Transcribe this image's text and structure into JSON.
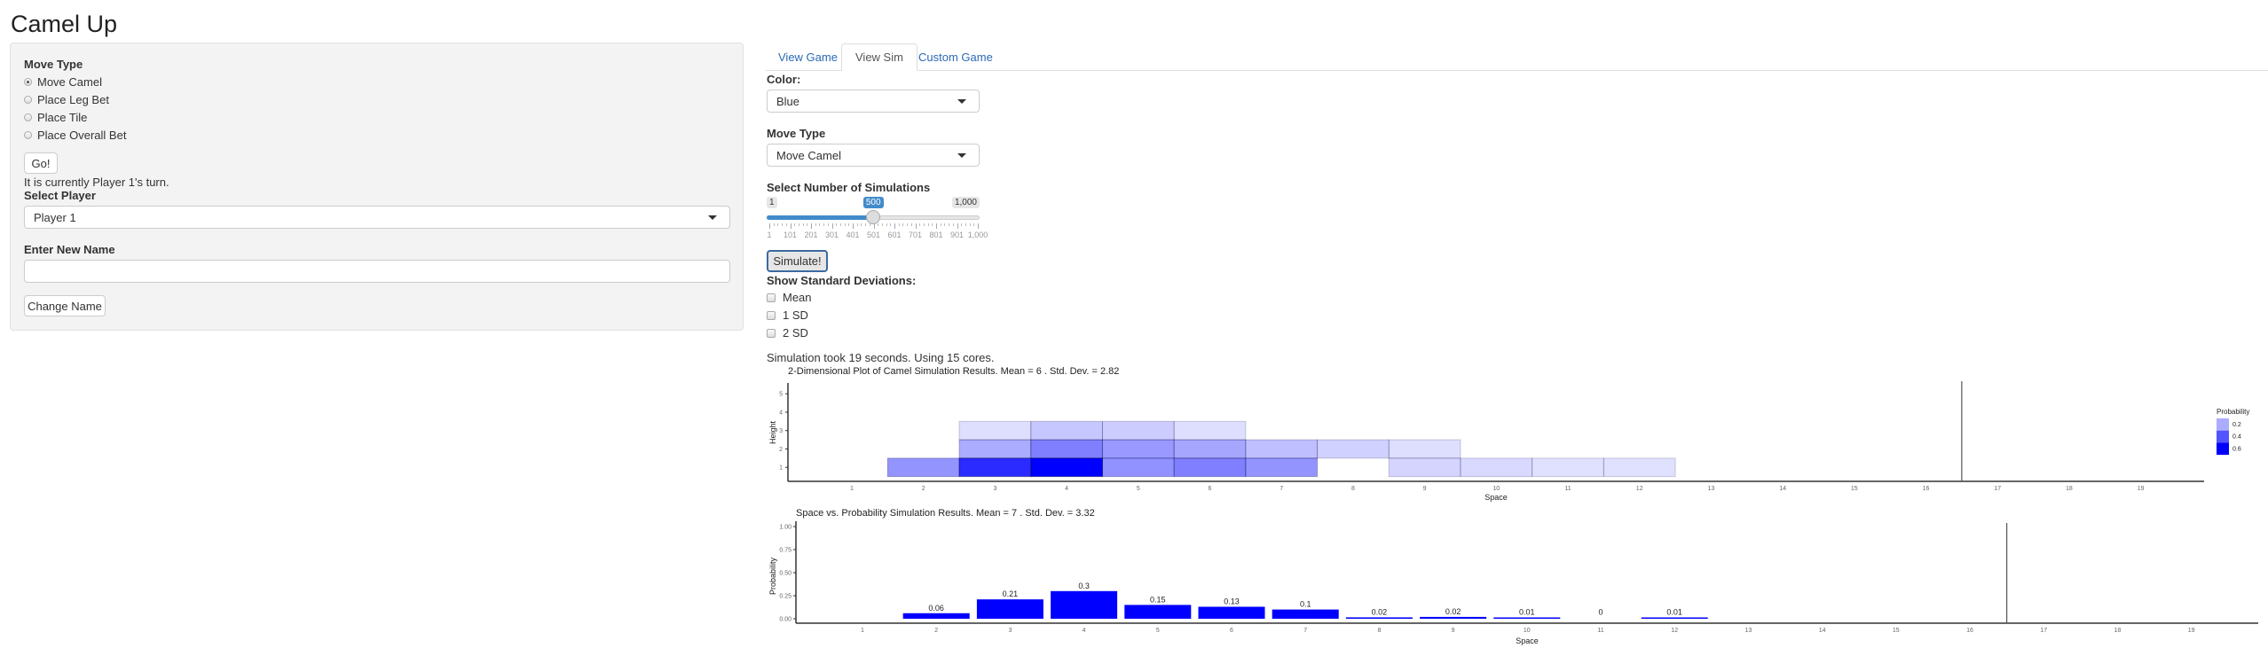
{
  "app": {
    "title": "Camel Up"
  },
  "sidebar": {
    "move_type_label": "Move Type",
    "radios": [
      {
        "label": "Move Camel",
        "checked": true
      },
      {
        "label": "Place Leg Bet",
        "checked": false
      },
      {
        "label": "Place Tile",
        "checked": false
      },
      {
        "label": "Place Overall Bet",
        "checked": false
      }
    ],
    "go_label": "Go!",
    "turn_text": "It is currently Player 1's turn.",
    "select_player_label": "Select Player",
    "select_player_value": "Player 1",
    "new_name_label": "Enter New Name",
    "new_name_value": "",
    "change_name_label": "Change Name"
  },
  "tabs": [
    {
      "label": "View Game",
      "active": false
    },
    {
      "label": "View Sim",
      "active": true
    },
    {
      "label": "Custom Game",
      "active": false
    }
  ],
  "sim": {
    "color_label": "Color:",
    "color_value": "Blue",
    "move_type_label": "Move Type",
    "move_type_value": "Move Camel",
    "slider_label": "Select Number of Simulations",
    "slider": {
      "min": 1,
      "max": 1000,
      "value": 500,
      "min_label": "1",
      "max_label": "1,000",
      "value_label": "500",
      "tick_labels": [
        "1",
        "101",
        "201",
        "301",
        "401",
        "501",
        "601",
        "701",
        "801",
        "901",
        "1,000"
      ]
    },
    "simulate_label": "Simulate!",
    "sd_label": "Show Standard Deviations:",
    "checkboxes": [
      {
        "label": "Mean",
        "checked": false
      },
      {
        "label": "1 SD",
        "checked": false
      },
      {
        "label": "2 SD",
        "checked": false
      }
    ],
    "status": "Simulation took 19 seconds. Using 15 cores."
  },
  "colors": {
    "accent": "#337ab7",
    "bar": "#0000ff"
  },
  "chart_data": [
    {
      "type": "heatmap",
      "title": "2-Dimensional Plot of Camel Simulation Results. Mean =  6 .  Std. Dev. =  2.82",
      "xlabel": "Space",
      "ylabel": "Height",
      "x_ticks": [
        "1",
        "2",
        "3",
        "4",
        "5",
        "6",
        "7",
        "8",
        "9",
        "10",
        "11",
        "12",
        "13",
        "14",
        "15",
        "16",
        "17",
        "18",
        "19"
      ],
      "y_ticks": [
        "1",
        "2",
        "3",
        "4",
        "5"
      ],
      "xlim": [
        0.1,
        19.9
      ],
      "ylim": [
        0.25,
        5.7
      ],
      "vline": 16.5,
      "legend": {
        "title": "Probability",
        "labels": [
          "0.2",
          "0.4",
          "0.6"
        ],
        "position": "right"
      },
      "cells": [
        {
          "x": 2,
          "y": 1,
          "p": 0.25
        },
        {
          "x": 3,
          "y": 1,
          "p": 0.5
        },
        {
          "x": 4,
          "y": 1,
          "p": 0.6
        },
        {
          "x": 5,
          "y": 1,
          "p": 0.26
        },
        {
          "x": 6,
          "y": 1,
          "p": 0.3
        },
        {
          "x": 7,
          "y": 1,
          "p": 0.25
        },
        {
          "x": 9,
          "y": 1,
          "p": 0.1
        },
        {
          "x": 10,
          "y": 1,
          "p": 0.09
        },
        {
          "x": 11,
          "y": 1,
          "p": 0.07
        },
        {
          "x": 12,
          "y": 1,
          "p": 0.07
        },
        {
          "x": 3,
          "y": 2,
          "p": 0.2
        },
        {
          "x": 4,
          "y": 2,
          "p": 0.3
        },
        {
          "x": 5,
          "y": 2,
          "p": 0.24
        },
        {
          "x": 6,
          "y": 2,
          "p": 0.21
        },
        {
          "x": 7,
          "y": 2,
          "p": 0.15
        },
        {
          "x": 8,
          "y": 2,
          "p": 0.11
        },
        {
          "x": 9,
          "y": 2,
          "p": 0.08
        },
        {
          "x": 3,
          "y": 3,
          "p": 0.08
        },
        {
          "x": 4,
          "y": 3,
          "p": 0.13
        },
        {
          "x": 5,
          "y": 3,
          "p": 0.12
        },
        {
          "x": 6,
          "y": 3,
          "p": 0.08
        }
      ]
    },
    {
      "type": "bar",
      "title": "Space vs. Probability Simulation Results. Mean =  7 .  Std. Dev. =  3.32",
      "xlabel": "Space",
      "ylabel": "Probability",
      "x_ticks": [
        "1",
        "2",
        "3",
        "4",
        "5",
        "6",
        "7",
        "8",
        "9",
        "10",
        "11",
        "12",
        "13",
        "14",
        "15",
        "16",
        "17",
        "18",
        "19"
      ],
      "y_ticks": [
        "0.00",
        "0.25",
        "0.50",
        "0.75",
        "1.00"
      ],
      "ylim": [
        0,
        1
      ],
      "vline": 16.5,
      "bars": [
        {
          "x": 2,
          "value": 0.06,
          "label": "0.06"
        },
        {
          "x": 3,
          "value": 0.21,
          "label": "0.21"
        },
        {
          "x": 4,
          "value": 0.3,
          "label": "0.3"
        },
        {
          "x": 5,
          "value": 0.15,
          "label": "0.15"
        },
        {
          "x": 6,
          "value": 0.13,
          "label": "0.13"
        },
        {
          "x": 7,
          "value": 0.1,
          "label": "0.1"
        },
        {
          "x": 8,
          "value": 0.015,
          "label": "0.02"
        },
        {
          "x": 9,
          "value": 0.02,
          "label": "0.02"
        },
        {
          "x": 10,
          "value": 0.01,
          "label": "0.01"
        },
        {
          "x": 11,
          "value": 0.0,
          "label": "0"
        },
        {
          "x": 12,
          "value": 0.005,
          "label": "0.01"
        }
      ]
    }
  ]
}
